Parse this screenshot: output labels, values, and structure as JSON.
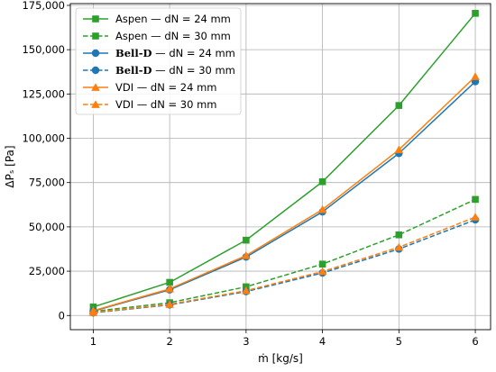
{
  "chart_data": {
    "type": "line",
    "title": "",
    "xlabel": "ṁ [kg/s]",
    "ylabel": "ΔPₛ [Pa]",
    "x": [
      1,
      2,
      3,
      4,
      5,
      6
    ],
    "xlim": [
      0.7,
      6.2
    ],
    "ylim": [
      -8000,
      176000
    ],
    "x_ticks": [
      "1",
      "2",
      "3",
      "4",
      "5",
      "6"
    ],
    "y_ticks": [
      "0",
      "25,000",
      "50,000",
      "75,000",
      "100,000",
      "125,000",
      "150,000",
      "175,000"
    ],
    "y_tick_values": [
      0,
      25000,
      50000,
      75000,
      100000,
      125000,
      150000,
      175000
    ],
    "grid": true,
    "legend_position": "top-left",
    "series": [
      {
        "name": "Aspen — dN = 24 mm",
        "name_parts": [
          "Aspen",
          " — dN = 24 mm"
        ],
        "bold_prefix": false,
        "color": "#2ca02c",
        "dash": "solid",
        "marker": "square",
        "values": [
          4800,
          18700,
          42500,
          75500,
          118500,
          170500
        ]
      },
      {
        "name": "Aspen — dN = 30 mm",
        "name_parts": [
          "Aspen",
          " — dN = 30 mm"
        ],
        "bold_prefix": false,
        "color": "#2ca02c",
        "dash": "dashed",
        "marker": "square",
        "values": [
          2300,
          7200,
          16200,
          29000,
          45500,
          65500
        ]
      },
      {
        "name": "Bell-D — dN = 24 mm",
        "name_parts": [
          "Bell-D",
          " — dN = 24 mm"
        ],
        "bold_prefix": true,
        "color": "#1f77b4",
        "dash": "solid",
        "marker": "circle",
        "values": [
          2500,
          14500,
          33000,
          58500,
          91500,
          132000
        ]
      },
      {
        "name": "Bell-D — dN = 30 mm",
        "name_parts": [
          "Bell-D",
          " — dN = 30 mm"
        ],
        "bold_prefix": true,
        "color": "#1f77b4",
        "dash": "dashed",
        "marker": "circle",
        "values": [
          1500,
          6000,
          13500,
          24000,
          37500,
          54000
        ]
      },
      {
        "name": "VDI — dN = 24 mm",
        "name_parts": [
          "VDI",
          " — dN = 24 mm"
        ],
        "bold_prefix": false,
        "color": "#ff7f0e",
        "dash": "solid",
        "marker": "triangle",
        "values": [
          2700,
          15000,
          33800,
          59800,
          93500,
          134800
        ]
      },
      {
        "name": "VDI — dN = 30 mm",
        "name_parts": [
          "VDI",
          " — dN = 30 mm"
        ],
        "bold_prefix": false,
        "color": "#ff7f0e",
        "dash": "dashed",
        "marker": "triangle",
        "values": [
          1700,
          6300,
          14000,
          24800,
          38500,
          55500
        ]
      }
    ]
  }
}
